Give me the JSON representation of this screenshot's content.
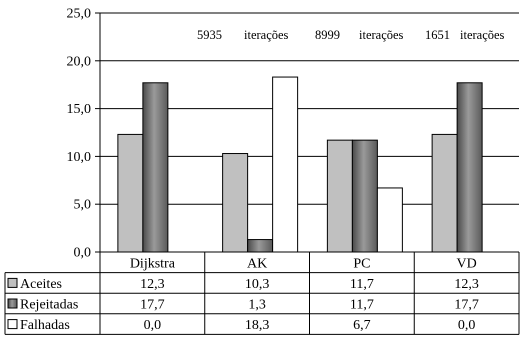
{
  "chart_data": {
    "type": "bar",
    "title": "",
    "xlabel": "",
    "ylabel": "",
    "categories": [
      "Dijkstra",
      "AK",
      "PC",
      "VD"
    ],
    "ylim": [
      0,
      25
    ],
    "yticks": [
      "0,0",
      "5,0",
      "10,0",
      "15,0",
      "20,0",
      "25,0"
    ],
    "grid": true,
    "legend_placement": "data-table-left",
    "series": [
      {
        "name": "Aceites",
        "values": [
          12.3,
          10.3,
          11.7,
          12.3
        ],
        "labels": [
          "12,3",
          "10,3",
          "11,7",
          "12,3"
        ],
        "color": "#c0c0c0",
        "swatch": "light-gray-square"
      },
      {
        "name": "Rejeitadas",
        "values": [
          17.7,
          1.3,
          11.7,
          17.7
        ],
        "labels": [
          "17,7",
          "1,3",
          "11,7",
          "17,7"
        ],
        "color": "#808080",
        "swatch": "gradient-gray-square"
      },
      {
        "name": "Falhadas",
        "values": [
          0.0,
          18.3,
          6.7,
          0.0
        ],
        "labels": [
          "0,0",
          "18,3",
          "6,7",
          "0,0"
        ],
        "color": "#ffffff",
        "swatch": "white-square"
      }
    ],
    "annotations": [
      {
        "category": "AK",
        "count": "5935",
        "text": "iterações"
      },
      {
        "category": "PC",
        "count": "8999",
        "text": "iterações"
      },
      {
        "category": "VD",
        "count": "1651",
        "text": "iterações"
      }
    ]
  }
}
